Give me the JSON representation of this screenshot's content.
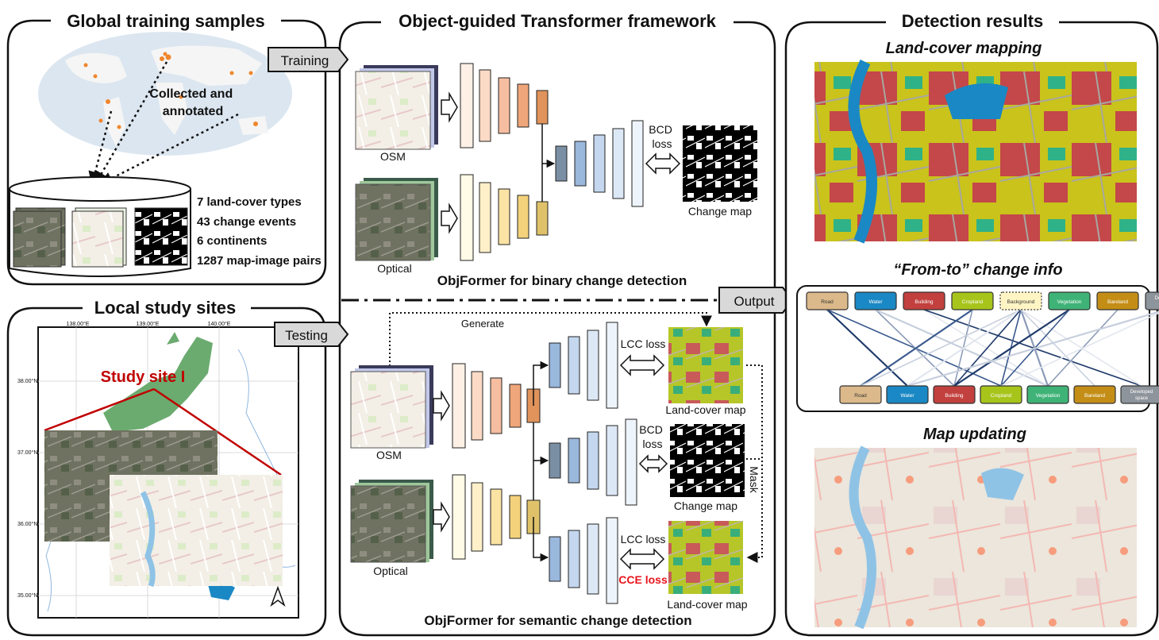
{
  "panels": {
    "global": {
      "title": "Global training samples",
      "map_note": "Collected and annotated",
      "stats": [
        "7 land-cover types",
        "43 change events",
        "6 continents",
        "1287 map-image pairs"
      ]
    },
    "local": {
      "title": "Local study sites",
      "lon_ticks": [
        "138.00°E",
        "139.00°E",
        "140.00°E"
      ],
      "lat_ticks": [
        "38.00°N",
        "37.00°N",
        "36.00°N",
        "35.00°N"
      ],
      "site_label": "Study site I"
    },
    "framework": {
      "title": "Object-guided Transformer framework",
      "training_tag": "Training",
      "testing_tag": "Testing",
      "output_tag": "Output",
      "binary": {
        "input_osm": "OSM",
        "input_optical": "Optical",
        "loss": "BCD loss",
        "result": "Change map",
        "caption": "ObjFormer for binary change detection"
      },
      "semantic": {
        "generate": "Generate",
        "input_osm": "OSM",
        "input_optical": "Optical",
        "loss_lcc_top": "LCC loss",
        "result_lc_top": "Land-cover map",
        "loss_bcd": "BCD loss",
        "result_change": "Change map",
        "mask": "Mask",
        "loss_lcc_bottom": "LCC loss",
        "loss_cce": "CCE loss",
        "result_lc_bottom": "Land-cover map",
        "caption": "ObjFormer for semantic change detection"
      }
    },
    "results": {
      "title": "Detection results",
      "mapping_title": "Land-cover mapping",
      "fromto_title": "“From-to” change info",
      "updating_title": "Map updating",
      "from_classes": [
        "Road",
        "Water",
        "Building",
        "Cropland",
        "Background",
        "Vegetation",
        "Bareland",
        "Developed space"
      ],
      "to_classes": [
        "Road",
        "Water",
        "Building",
        "Cropland",
        "Vegetation",
        "Bareland",
        "Developed space"
      ],
      "class_colors": [
        "#dcb98a",
        "#1a88c4",
        "#c2403e",
        "#a7c41b",
        "#fff5c4",
        "#3fb377",
        "#c48e16",
        "#8e949b"
      ]
    }
  },
  "colors": {
    "accent_red": "#e8141c",
    "site_red": "#c00000",
    "encoder_warm": [
      "#fff0e6",
      "#fbdac6",
      "#f6bea0",
      "#efa67a",
      "#e0935b"
    ],
    "encoder_yellow": [
      "#fffbe6",
      "#fff0c9",
      "#fbe3a4",
      "#f4d27c",
      "#dfc16a"
    ],
    "decoder_blue": [
      "#7b8fa4",
      "#9ab7dc",
      "#c4d7ef",
      "#dde8f6",
      "#eef4fb"
    ]
  }
}
